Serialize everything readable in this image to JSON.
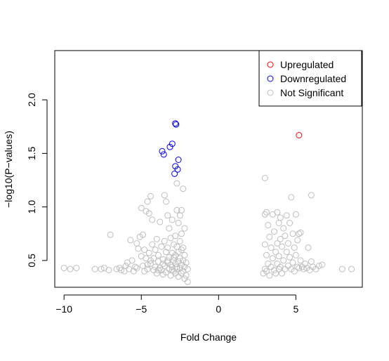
{
  "chart_data": {
    "type": "scatter",
    "xlabel": "Fold Change",
    "ylabel": "−log10(P−values)",
    "xlim": [
      -10.6,
      9.3
    ],
    "ylim": [
      0.25,
      2.46
    ],
    "x_ticks": [
      -10,
      -5,
      0,
      5
    ],
    "x_tick_labels": [
      "−10",
      "−5",
      "0",
      "5"
    ],
    "y_ticks": [
      0.5,
      1.0,
      1.5,
      2.0
    ],
    "y_tick_labels": [
      "0.5",
      "1.0",
      "1.5",
      "2.0"
    ],
    "grid": false,
    "legend_position": "top-right",
    "series": [
      {
        "name": "Upregulated",
        "color": "#ff0000",
        "points": [
          [
            5.2,
            1.67
          ]
        ]
      },
      {
        "name": "Downregulated",
        "color": "#0000ff",
        "points": [
          [
            -2.8,
            1.78
          ],
          [
            -2.75,
            1.77
          ],
          [
            -3.0,
            1.59
          ],
          [
            -3.15,
            1.56
          ],
          [
            -3.65,
            1.52
          ],
          [
            -3.55,
            1.49
          ],
          [
            -2.6,
            1.44
          ],
          [
            -2.8,
            1.38
          ],
          [
            -2.65,
            1.35
          ],
          [
            -2.85,
            1.31
          ]
        ]
      },
      {
        "name": "Not Significant",
        "color": "#bebebe",
        "points": [
          [
            -10.0,
            0.43
          ],
          [
            -9.6,
            0.42
          ],
          [
            -9.2,
            0.43
          ],
          [
            -8.0,
            0.42
          ],
          [
            -7.6,
            0.42
          ],
          [
            -7.4,
            0.43
          ],
          [
            -7.1,
            0.41
          ],
          [
            -7.0,
            0.74
          ],
          [
            -6.6,
            0.42
          ],
          [
            -6.4,
            0.43
          ],
          [
            -6.3,
            0.41
          ],
          [
            -6.1,
            0.4
          ],
          [
            -6.0,
            0.45
          ],
          [
            -5.9,
            0.48
          ],
          [
            -5.8,
            0.42
          ],
          [
            -5.7,
            0.69
          ],
          [
            -5.6,
            0.5
          ],
          [
            -5.5,
            0.4
          ],
          [
            -5.4,
            0.44
          ],
          [
            -5.3,
            0.66
          ],
          [
            -5.2,
            0.61
          ],
          [
            -5.1,
            0.72
          ],
          [
            -5.0,
            0.99
          ],
          [
            -5.0,
            0.54
          ],
          [
            -4.9,
            0.74
          ],
          [
            -4.9,
            0.45
          ],
          [
            -4.8,
            0.6
          ],
          [
            -4.8,
            0.4
          ],
          [
            -4.7,
            0.96
          ],
          [
            -4.7,
            0.52
          ],
          [
            -4.6,
            1.05
          ],
          [
            -4.6,
            0.42
          ],
          [
            -4.5,
            0.94
          ],
          [
            -4.5,
            0.57
          ],
          [
            -4.4,
            1.1
          ],
          [
            -4.4,
            0.47
          ],
          [
            -4.3,
            0.88
          ],
          [
            -4.3,
            0.65
          ],
          [
            -4.2,
            0.41
          ],
          [
            -4.2,
            0.52
          ],
          [
            -4.1,
            0.6
          ],
          [
            -4.1,
            0.44
          ],
          [
            -4.0,
            0.7
          ],
          [
            -4.0,
            0.38
          ],
          [
            -3.9,
            0.49
          ],
          [
            -3.9,
            0.55
          ],
          [
            -3.8,
            0.86
          ],
          [
            -3.8,
            0.43
          ],
          [
            -3.7,
            0.63
          ],
          [
            -3.7,
            0.41
          ],
          [
            -3.6,
            0.51
          ],
          [
            -3.6,
            0.37
          ],
          [
            -3.5,
            1.11
          ],
          [
            -3.5,
            0.68
          ],
          [
            -3.5,
            0.45
          ],
          [
            -3.4,
            1.05
          ],
          [
            -3.4,
            0.58
          ],
          [
            -3.4,
            0.39
          ],
          [
            -3.3,
            0.92
          ],
          [
            -3.3,
            0.48
          ],
          [
            -3.3,
            0.62
          ],
          [
            -3.2,
            0.8
          ],
          [
            -3.2,
            0.53
          ],
          [
            -3.2,
            0.42
          ],
          [
            -3.1,
            0.71
          ],
          [
            -3.1,
            0.46
          ],
          [
            -3.1,
            0.36
          ],
          [
            -3.0,
            0.88
          ],
          [
            -3.0,
            0.57
          ],
          [
            -3.0,
            0.44
          ],
          [
            -2.9,
            0.65
          ],
          [
            -2.9,
            0.5
          ],
          [
            -2.9,
            0.4
          ],
          [
            -2.8,
            0.73
          ],
          [
            -2.8,
            0.55
          ],
          [
            -2.8,
            0.47
          ],
          [
            -2.8,
            0.38
          ],
          [
            -2.7,
            1.22
          ],
          [
            -2.7,
            0.97
          ],
          [
            -2.7,
            0.63
          ],
          [
            -2.7,
            0.42
          ],
          [
            -2.6,
            0.85
          ],
          [
            -2.6,
            0.58
          ],
          [
            -2.6,
            0.49
          ],
          [
            -2.6,
            0.35
          ],
          [
            -2.5,
            0.92
          ],
          [
            -2.5,
            0.68
          ],
          [
            -2.5,
            0.52
          ],
          [
            -2.5,
            0.43
          ],
          [
            -2.4,
            0.97
          ],
          [
            -2.4,
            0.75
          ],
          [
            -2.4,
            0.6
          ],
          [
            -2.4,
            0.46
          ],
          [
            -2.4,
            0.38
          ],
          [
            -2.3,
            1.17
          ],
          [
            -2.3,
            0.62
          ],
          [
            -2.3,
            0.5
          ],
          [
            -2.3,
            0.4
          ],
          [
            -2.2,
            0.8
          ],
          [
            -2.2,
            0.55
          ],
          [
            -2.2,
            0.44
          ],
          [
            -2.2,
            0.33
          ],
          [
            -2.1,
            0.48
          ],
          [
            -2.1,
            0.36
          ],
          [
            -2.0,
            0.42
          ],
          [
            -2.0,
            0.3
          ],
          [
            -4.4,
            0.5
          ],
          [
            -3.6,
            0.47
          ],
          [
            -3.0,
            0.41
          ],
          [
            -2.7,
            0.44
          ],
          [
            -5.3,
            0.43
          ],
          [
            -4.6,
            0.46
          ],
          [
            -3.9,
            0.41
          ],
          [
            -3.3,
            0.5
          ],
          [
            -2.9,
            0.53
          ],
          [
            2.9,
            0.38
          ],
          [
            3.0,
            1.27
          ],
          [
            3.0,
            0.93
          ],
          [
            3.0,
            0.65
          ],
          [
            3.0,
            0.42
          ],
          [
            3.1,
            0.95
          ],
          [
            3.1,
            0.55
          ],
          [
            3.1,
            0.4
          ],
          [
            3.2,
            0.83
          ],
          [
            3.2,
            0.47
          ],
          [
            3.3,
            0.72
          ],
          [
            3.3,
            0.36
          ],
          [
            3.4,
            0.62
          ],
          [
            3.4,
            0.44
          ],
          [
            3.5,
            0.93
          ],
          [
            3.5,
            0.52
          ],
          [
            3.6,
            0.77
          ],
          [
            3.6,
            0.41
          ],
          [
            3.7,
            0.58
          ],
          [
            3.7,
            0.38
          ],
          [
            3.8,
            0.95
          ],
          [
            3.8,
            0.66
          ],
          [
            3.8,
            0.47
          ],
          [
            3.9,
            0.85
          ],
          [
            3.9,
            0.54
          ],
          [
            3.9,
            0.42
          ],
          [
            4.0,
            0.9
          ],
          [
            4.0,
            0.7
          ],
          [
            4.0,
            0.44
          ],
          [
            4.1,
            0.63
          ],
          [
            4.1,
            0.38
          ],
          [
            4.2,
            0.8
          ],
          [
            4.2,
            0.5
          ],
          [
            4.3,
            0.73
          ],
          [
            4.3,
            0.42
          ],
          [
            4.4,
            0.92
          ],
          [
            4.4,
            0.58
          ],
          [
            4.5,
            0.66
          ],
          [
            4.5,
            0.45
          ],
          [
            4.6,
            0.85
          ],
          [
            4.6,
            0.53
          ],
          [
            4.7,
            1.09
          ],
          [
            4.7,
            0.42
          ],
          [
            4.8,
            0.75
          ],
          [
            4.8,
            0.48
          ],
          [
            4.9,
            0.62
          ],
          [
            4.9,
            0.4
          ],
          [
            5.0,
            0.93
          ],
          [
            5.0,
            0.55
          ],
          [
            5.1,
            0.69
          ],
          [
            5.1,
            0.44
          ],
          [
            5.2,
            0.75
          ],
          [
            5.2,
            0.43
          ],
          [
            5.3,
            0.76
          ],
          [
            5.3,
            0.5
          ],
          [
            5.4,
            0.44
          ],
          [
            5.5,
            0.42
          ],
          [
            5.6,
            0.47
          ],
          [
            5.7,
            0.43
          ],
          [
            5.8,
            0.62
          ],
          [
            5.9,
            0.41
          ],
          [
            6.0,
            1.11
          ],
          [
            6.0,
            0.49
          ],
          [
            6.1,
            0.44
          ],
          [
            6.3,
            0.42
          ],
          [
            6.5,
            0.45
          ],
          [
            6.7,
            0.46
          ],
          [
            8.0,
            0.42
          ],
          [
            8.6,
            0.42
          ]
        ]
      }
    ]
  }
}
